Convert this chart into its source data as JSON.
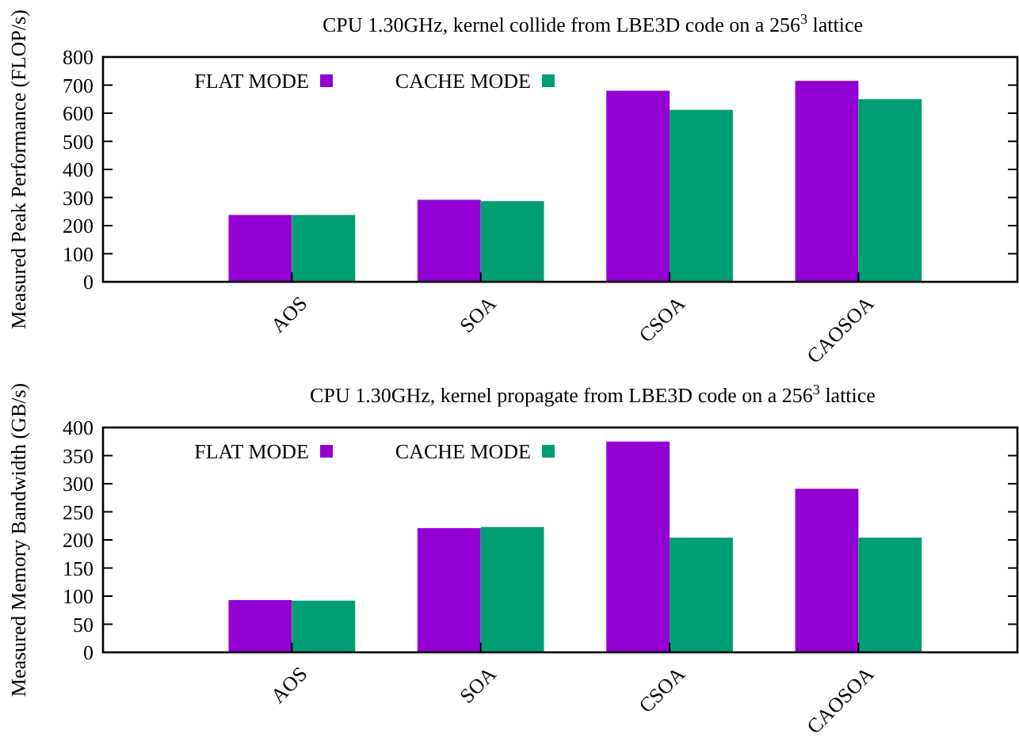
{
  "chart_data": [
    {
      "type": "bar",
      "title": "CPU 1.30GHz, kernel collide from LBE3D code on a 256$^{3}$ lattice",
      "ylabel": "Measured Peak Performance (FLOP/s)",
      "categories": [
        "AOS",
        "SOA",
        "CSOA",
        "CAOSOA"
      ],
      "series": [
        {
          "name": "FLAT MODE",
          "color": "#9400d3",
          "values": [
            238,
            292,
            680,
            715
          ]
        },
        {
          "name": "CACHE MODE",
          "color": "#009e73",
          "values": [
            238,
            287,
            612,
            650
          ]
        }
      ],
      "ylim": [
        0,
        800
      ],
      "yticks": [
        0,
        100,
        200,
        300,
        400,
        500,
        600,
        700,
        800
      ],
      "grid": false,
      "legend": "top left"
    },
    {
      "type": "bar",
      "title": "CPU 1.30GHz, kernel propagate from LBE3D code on a 256$^{3}$ lattice",
      "ylabel": "Measured Memory Bandwidth (GB/s)",
      "categories": [
        "AOS",
        "SOA",
        "CSOA",
        "CAOSOA"
      ],
      "series": [
        {
          "name": "FLAT MODE",
          "color": "#9400d3",
          "values": [
            93,
            221,
            375,
            291
          ]
        },
        {
          "name": "CACHE MODE",
          "color": "#009e73",
          "values": [
            92,
            223,
            204,
            204
          ]
        }
      ],
      "ylim": [
        0,
        400
      ],
      "yticks": [
        0,
        50,
        100,
        150,
        200,
        250,
        300,
        350,
        400
      ],
      "grid": false,
      "legend": "top left"
    }
  ]
}
